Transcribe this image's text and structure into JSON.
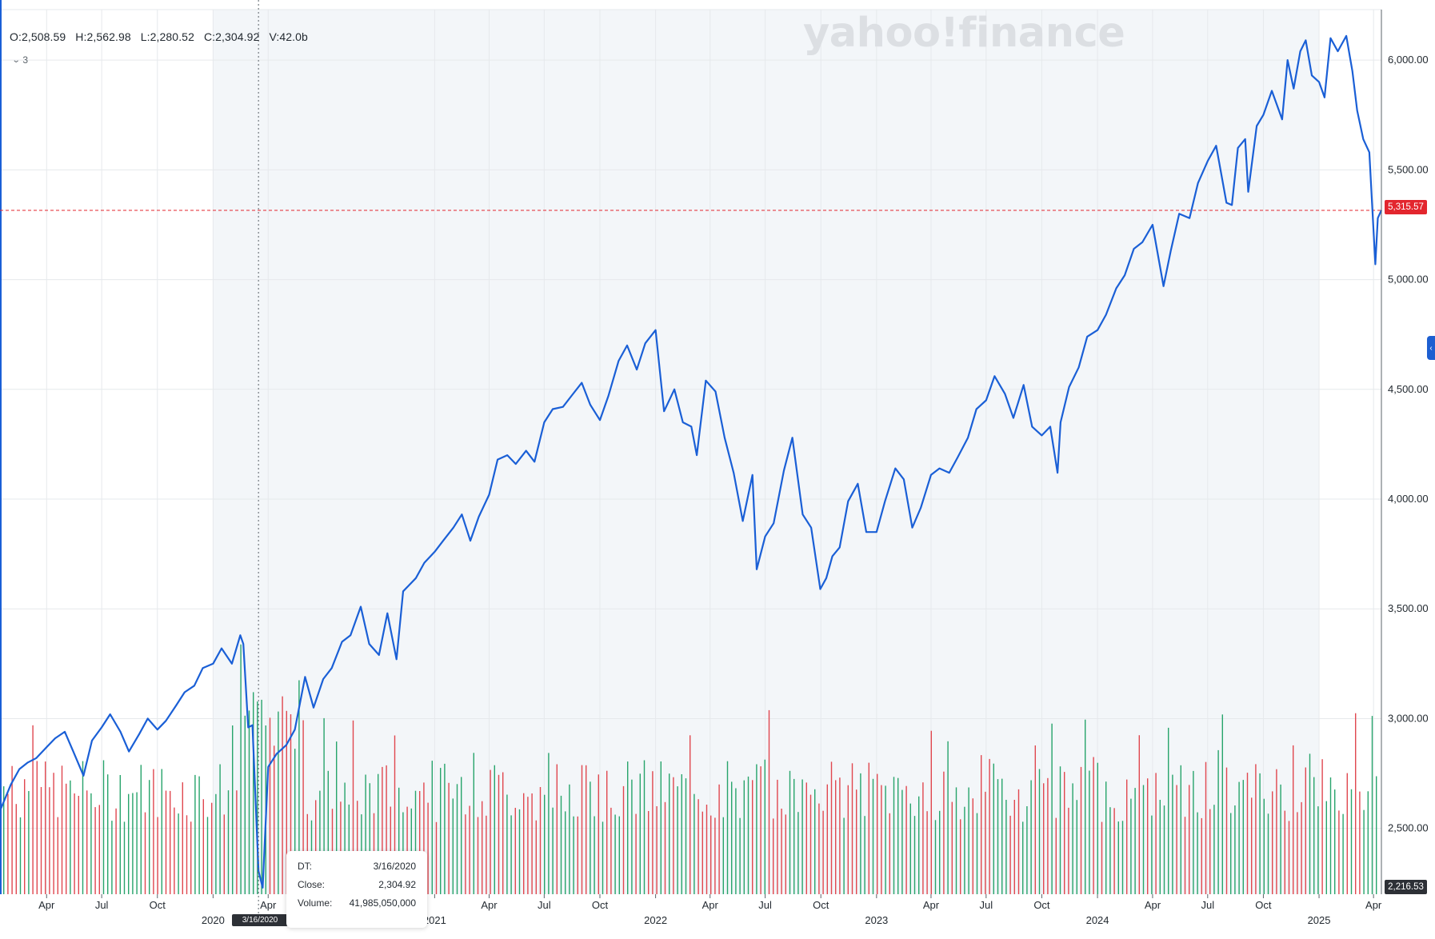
{
  "header": {
    "open": "O:2,508.59",
    "high": "H:2,562.98",
    "low": "L:2,280.52",
    "close": "C:2,304.92",
    "volume": "V:42.0b",
    "indicator_count": "3"
  },
  "watermark": "yahoo!finance",
  "tooltip": {
    "date_label": "DT:",
    "date_value": "3/16/2020",
    "close_label": "Close:",
    "close_value": "2,304.92",
    "volume_label": "Volume:",
    "volume_value": "41,985,050,000"
  },
  "crosshair_date": "3/16/2020",
  "last_price_label": "5,315.57",
  "cursor_price_label": "2,216.53",
  "colors": {
    "line": "#1a5fd6",
    "volume_up": "#27a46b",
    "volume_down": "#e0474f",
    "grid": "#e6e9ec",
    "shade": "#f3f6f9",
    "last_price": "#e3262e",
    "crosshair": "#5b636a"
  },
  "chart_data": {
    "type": "line",
    "title": "",
    "xlabel": "",
    "ylabel": "",
    "ylim": [
      2200,
      6230
    ],
    "y_ticks": [
      "2,500.00",
      "3,000.00",
      "3,500.00",
      "4,000.00",
      "4,500.00",
      "5,000.00",
      "5,500.00",
      "6,000.00"
    ],
    "y_tick_values": [
      2500,
      3000,
      3500,
      4000,
      4500,
      5000,
      5500,
      6000
    ],
    "x_ticks": [
      {
        "date": "2019-04-01",
        "label": "Apr"
      },
      {
        "date": "2019-07-01",
        "label": "Jul"
      },
      {
        "date": "2019-10-01",
        "label": "Oct"
      },
      {
        "date": "2020-01-01",
        "label": "2020"
      },
      {
        "date": "2020-04-01",
        "label": "Apr"
      },
      {
        "date": "2021-01-01",
        "label": "2021"
      },
      {
        "date": "2021-04-01",
        "label": "Apr"
      },
      {
        "date": "2021-07-01",
        "label": "Jul"
      },
      {
        "date": "2021-10-01",
        "label": "Oct"
      },
      {
        "date": "2022-01-01",
        "label": "2022"
      },
      {
        "date": "2022-04-01",
        "label": "Apr"
      },
      {
        "date": "2022-07-01",
        "label": "Jul"
      },
      {
        "date": "2022-10-01",
        "label": "Oct"
      },
      {
        "date": "2023-01-01",
        "label": "2023"
      },
      {
        "date": "2023-04-01",
        "label": "Apr"
      },
      {
        "date": "2023-07-01",
        "label": "Jul"
      },
      {
        "date": "2023-10-01",
        "label": "Oct"
      },
      {
        "date": "2024-01-01",
        "label": "2024"
      },
      {
        "date": "2024-04-01",
        "label": "Apr"
      },
      {
        "date": "2024-07-01",
        "label": "Jul"
      },
      {
        "date": "2024-10-01",
        "label": "Oct"
      },
      {
        "date": "2025-01-01",
        "label": "2025"
      },
      {
        "date": "2025-04-01",
        "label": "Apr"
      }
    ],
    "x_range": [
      "2019-01-14",
      "2025-04-14"
    ],
    "shaded_period": [
      "2020-01-01",
      "2025-01-01"
    ],
    "last_price": 5315.57,
    "crosshair": {
      "date": "2020-03-16",
      "value": 2216.53
    },
    "series": [
      {
        "points": [
          [
            "2019-01-14",
            2580
          ],
          [
            "2019-02-01",
            2700
          ],
          [
            "2019-02-15",
            2770
          ],
          [
            "2019-03-01",
            2800
          ],
          [
            "2019-03-15",
            2820
          ],
          [
            "2019-04-01",
            2870
          ],
          [
            "2019-04-15",
            2910
          ],
          [
            "2019-05-01",
            2940
          ],
          [
            "2019-05-15",
            2850
          ],
          [
            "2019-06-01",
            2740
          ],
          [
            "2019-06-15",
            2900
          ],
          [
            "2019-07-01",
            2960
          ],
          [
            "2019-07-15",
            3020
          ],
          [
            "2019-08-01",
            2940
          ],
          [
            "2019-08-15",
            2850
          ],
          [
            "2019-09-01",
            2930
          ],
          [
            "2019-09-15",
            3000
          ],
          [
            "2019-10-01",
            2950
          ],
          [
            "2019-10-15",
            2990
          ],
          [
            "2019-11-01",
            3060
          ],
          [
            "2019-11-15",
            3120
          ],
          [
            "2019-12-01",
            3150
          ],
          [
            "2019-12-15",
            3230
          ],
          [
            "2020-01-01",
            3250
          ],
          [
            "2020-01-15",
            3320
          ],
          [
            "2020-02-01",
            3250
          ],
          [
            "2020-02-15",
            3380
          ],
          [
            "2020-02-20",
            3340
          ],
          [
            "2020-02-28",
            2960
          ],
          [
            "2020-03-06",
            2970
          ],
          [
            "2020-03-16",
            2305
          ],
          [
            "2020-03-23",
            2230
          ],
          [
            "2020-04-01",
            2780
          ],
          [
            "2020-04-15",
            2840
          ],
          [
            "2020-05-01",
            2880
          ],
          [
            "2020-05-15",
            2950
          ],
          [
            "2020-06-01",
            3190
          ],
          [
            "2020-06-15",
            3050
          ],
          [
            "2020-07-01",
            3180
          ],
          [
            "2020-07-15",
            3230
          ],
          [
            "2020-08-01",
            3350
          ],
          [
            "2020-08-15",
            3380
          ],
          [
            "2020-09-01",
            3510
          ],
          [
            "2020-09-15",
            3340
          ],
          [
            "2020-10-01",
            3290
          ],
          [
            "2020-10-15",
            3480
          ],
          [
            "2020-10-30",
            3270
          ],
          [
            "2020-11-10",
            3580
          ],
          [
            "2020-12-01",
            3640
          ],
          [
            "2020-12-15",
            3710
          ],
          [
            "2021-01-01",
            3760
          ],
          [
            "2021-01-15",
            3810
          ],
          [
            "2021-02-01",
            3870
          ],
          [
            "2021-02-15",
            3930
          ],
          [
            "2021-03-01",
            3810
          ],
          [
            "2021-03-15",
            3920
          ],
          [
            "2021-04-01",
            4020
          ],
          [
            "2021-04-15",
            4180
          ],
          [
            "2021-05-01",
            4200
          ],
          [
            "2021-05-15",
            4160
          ],
          [
            "2021-06-01",
            4220
          ],
          [
            "2021-06-15",
            4170
          ],
          [
            "2021-07-01",
            4350
          ],
          [
            "2021-07-15",
            4410
          ],
          [
            "2021-08-01",
            4420
          ],
          [
            "2021-08-15",
            4470
          ],
          [
            "2021-09-01",
            4530
          ],
          [
            "2021-09-15",
            4430
          ],
          [
            "2021-10-01",
            4360
          ],
          [
            "2021-10-15",
            4470
          ],
          [
            "2021-11-01",
            4630
          ],
          [
            "2021-11-15",
            4700
          ],
          [
            "2021-12-01",
            4590
          ],
          [
            "2021-12-15",
            4710
          ],
          [
            "2022-01-01",
            4770
          ],
          [
            "2022-01-15",
            4400
          ],
          [
            "2022-02-01",
            4500
          ],
          [
            "2022-02-15",
            4350
          ],
          [
            "2022-03-01",
            4330
          ],
          [
            "2022-03-10",
            4200
          ],
          [
            "2022-03-25",
            4540
          ],
          [
            "2022-04-10",
            4490
          ],
          [
            "2022-04-25",
            4280
          ],
          [
            "2022-05-10",
            4120
          ],
          [
            "2022-05-25",
            3900
          ],
          [
            "2022-06-10",
            4110
          ],
          [
            "2022-06-17",
            3680
          ],
          [
            "2022-07-01",
            3830
          ],
          [
            "2022-07-15",
            3890
          ],
          [
            "2022-08-01",
            4130
          ],
          [
            "2022-08-15",
            4280
          ],
          [
            "2022-09-01",
            3930
          ],
          [
            "2022-09-15",
            3870
          ],
          [
            "2022-09-30",
            3590
          ],
          [
            "2022-10-10",
            3640
          ],
          [
            "2022-10-20",
            3740
          ],
          [
            "2022-11-01",
            3780
          ],
          [
            "2022-11-15",
            3990
          ],
          [
            "2022-12-01",
            4070
          ],
          [
            "2022-12-15",
            3850
          ],
          [
            "2023-01-01",
            3850
          ],
          [
            "2023-01-15",
            3990
          ],
          [
            "2023-02-01",
            4140
          ],
          [
            "2023-02-15",
            4090
          ],
          [
            "2023-03-01",
            3870
          ],
          [
            "2023-03-15",
            3960
          ],
          [
            "2023-04-01",
            4110
          ],
          [
            "2023-04-15",
            4140
          ],
          [
            "2023-05-01",
            4120
          ],
          [
            "2023-05-15",
            4190
          ],
          [
            "2023-06-01",
            4280
          ],
          [
            "2023-06-15",
            4410
          ],
          [
            "2023-07-01",
            4450
          ],
          [
            "2023-07-15",
            4560
          ],
          [
            "2023-08-01",
            4480
          ],
          [
            "2023-08-15",
            4370
          ],
          [
            "2023-09-01",
            4520
          ],
          [
            "2023-09-15",
            4330
          ],
          [
            "2023-10-01",
            4290
          ],
          [
            "2023-10-15",
            4330
          ],
          [
            "2023-10-27",
            4120
          ],
          [
            "2023-11-01",
            4350
          ],
          [
            "2023-11-15",
            4510
          ],
          [
            "2023-12-01",
            4600
          ],
          [
            "2023-12-15",
            4740
          ],
          [
            "2024-01-01",
            4770
          ],
          [
            "2024-01-15",
            4840
          ],
          [
            "2024-02-01",
            4960
          ],
          [
            "2024-02-15",
            5020
          ],
          [
            "2024-03-01",
            5140
          ],
          [
            "2024-03-15",
            5170
          ],
          [
            "2024-04-01",
            5250
          ],
          [
            "2024-04-19",
            4970
          ],
          [
            "2024-05-01",
            5130
          ],
          [
            "2024-05-15",
            5300
          ],
          [
            "2024-06-01",
            5280
          ],
          [
            "2024-06-15",
            5440
          ],
          [
            "2024-07-01",
            5540
          ],
          [
            "2024-07-15",
            5610
          ],
          [
            "2024-08-01",
            5350
          ],
          [
            "2024-08-10",
            5340
          ],
          [
            "2024-08-20",
            5600
          ],
          [
            "2024-09-01",
            5640
          ],
          [
            "2024-09-06",
            5400
          ],
          [
            "2024-09-20",
            5700
          ],
          [
            "2024-10-01",
            5750
          ],
          [
            "2024-10-15",
            5860
          ],
          [
            "2024-11-01",
            5730
          ],
          [
            "2024-11-10",
            6000
          ],
          [
            "2024-11-20",
            5870
          ],
          [
            "2024-12-01",
            6040
          ],
          [
            "2024-12-10",
            6090
          ],
          [
            "2024-12-20",
            5930
          ],
          [
            "2025-01-01",
            5900
          ],
          [
            "2025-01-10",
            5830
          ],
          [
            "2025-01-20",
            6100
          ],
          [
            "2025-02-01",
            6040
          ],
          [
            "2025-02-15",
            6110
          ],
          [
            "2025-02-25",
            5950
          ],
          [
            "2025-03-05",
            5770
          ],
          [
            "2025-03-15",
            5640
          ],
          [
            "2025-03-25",
            5580
          ],
          [
            "2025-04-04",
            5070
          ],
          [
            "2025-04-08",
            5280
          ],
          [
            "2025-04-14",
            5316
          ]
        ]
      }
    ]
  }
}
